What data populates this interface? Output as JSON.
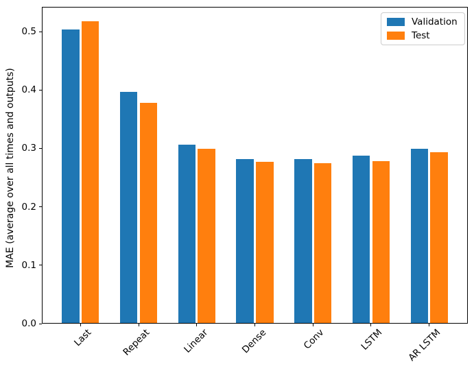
{
  "figure": {
    "background": "#ffffff"
  },
  "chart_data": {
    "type": "bar",
    "title": "",
    "xlabel": "",
    "ylabel": "MAE (average over all times and outputs)",
    "categories": [
      "Last",
      "Repeat",
      "Linear",
      "Dense",
      "Conv",
      "LSTM",
      "AR LSTM"
    ],
    "series": [
      {
        "name": "Validation",
        "color": "#1f77b4",
        "values": [
          0.502,
          0.396,
          0.305,
          0.28,
          0.28,
          0.286,
          0.298
        ]
      },
      {
        "name": "Test",
        "color": "#ff7f0e",
        "values": [
          0.516,
          0.377,
          0.298,
          0.276,
          0.274,
          0.277,
          0.292
        ]
      }
    ],
    "ylim": [
      0,
      0.54
    ],
    "yticks": [
      0.0,
      0.1,
      0.2,
      0.3,
      0.4,
      0.5
    ],
    "ytick_labels": [
      "0.0",
      "0.1",
      "0.2",
      "0.3",
      "0.4",
      "0.5"
    ],
    "xtick_rotation": 45,
    "grid": false,
    "legend": {
      "position": "upper right",
      "entries": [
        "Validation",
        "Test"
      ]
    }
  }
}
